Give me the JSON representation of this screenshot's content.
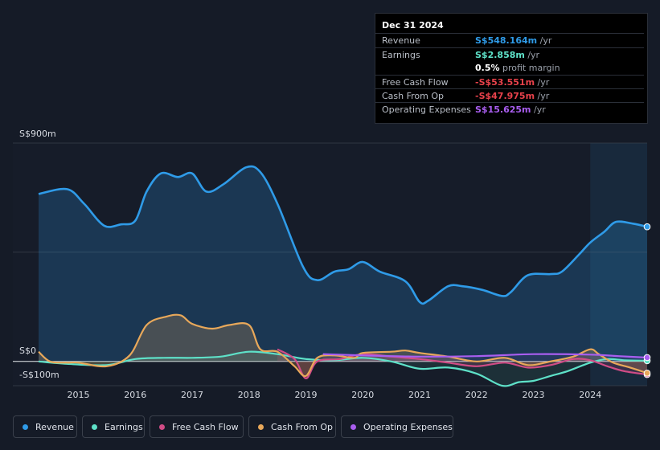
{
  "tooltip": {
    "date": "Dec 31 2024",
    "rows": [
      {
        "label": "Revenue",
        "value": "S$548.164m",
        "unit": " /yr",
        "color": "#2f9be8"
      },
      {
        "label": "Earnings",
        "value": "S$2.858m",
        "unit": " /yr",
        "color": "#5ee1c8"
      },
      {
        "label": "",
        "value": "0.5%",
        "unit": " profit margin",
        "color": "#ffffff"
      },
      {
        "label": "Free Cash Flow",
        "value": "-S$53.551m",
        "unit": " /yr",
        "color": "#e8424b"
      },
      {
        "label": "Cash From Op",
        "value": "-S$47.975m",
        "unit": " /yr",
        "color": "#e8424b"
      },
      {
        "label": "Operating Expenses",
        "value": "S$15.625m",
        "unit": " /yr",
        "color": "#a95ef0"
      }
    ]
  },
  "legend": [
    {
      "label": "Revenue",
      "color": "#2f9be8"
    },
    {
      "label": "Earnings",
      "color": "#5ee1c8"
    },
    {
      "label": "Free Cash Flow",
      "color": "#d04c86"
    },
    {
      "label": "Cash From Op",
      "color": "#e8a85a"
    },
    {
      "label": "Operating Expenses",
      "color": "#a95ef0"
    }
  ],
  "chart_data": {
    "type": "area",
    "title": "",
    "xlabel": "",
    "ylabel": "",
    "ytick_labels": [
      "S$900m",
      "S$0",
      "-S$100m"
    ],
    "xtick_labels": [
      "2015",
      "2016",
      "2017",
      "2018",
      "2019",
      "2020",
      "2021",
      "2022",
      "2023",
      "2024"
    ],
    "xlim": [
      2014.3,
      2025.0
    ],
    "ylim": [
      -100,
      900
    ],
    "highlight_from": 2024.0,
    "series": [
      {
        "name": "Revenue",
        "color": "#2f9be8",
        "points": [
          [
            2014.3,
            690
          ],
          [
            2014.8,
            710
          ],
          [
            2015.1,
            650
          ],
          [
            2015.45,
            560
          ],
          [
            2015.75,
            565
          ],
          [
            2016.0,
            580
          ],
          [
            2016.2,
            700
          ],
          [
            2016.45,
            775
          ],
          [
            2016.75,
            760
          ],
          [
            2017.0,
            775
          ],
          [
            2017.25,
            700
          ],
          [
            2017.55,
            730
          ],
          [
            2017.95,
            800
          ],
          [
            2018.2,
            780
          ],
          [
            2018.5,
            650
          ],
          [
            2018.95,
            390
          ],
          [
            2019.2,
            335
          ],
          [
            2019.5,
            370
          ],
          [
            2019.75,
            380
          ],
          [
            2020.0,
            410
          ],
          [
            2020.3,
            370
          ],
          [
            2020.75,
            330
          ],
          [
            2021.0,
            245
          ],
          [
            2021.15,
            250
          ],
          [
            2021.5,
            310
          ],
          [
            2021.75,
            310
          ],
          [
            2022.1,
            295
          ],
          [
            2022.45,
            270
          ],
          [
            2022.6,
            285
          ],
          [
            2022.9,
            355
          ],
          [
            2023.3,
            360
          ],
          [
            2023.5,
            370
          ],
          [
            2023.8,
            440
          ],
          [
            2024.0,
            490
          ],
          [
            2024.25,
            535
          ],
          [
            2024.45,
            575
          ],
          [
            2024.75,
            568
          ],
          [
            2025.0,
            555
          ]
        ]
      },
      {
        "name": "Earnings",
        "color": "#5ee1c8",
        "points": [
          [
            2014.3,
            0
          ],
          [
            2014.8,
            -10
          ],
          [
            2015.5,
            -15
          ],
          [
            2016.0,
            10
          ],
          [
            2016.5,
            15
          ],
          [
            2017.0,
            15
          ],
          [
            2017.5,
            20
          ],
          [
            2018.0,
            40
          ],
          [
            2018.5,
            30
          ],
          [
            2019.0,
            10
          ],
          [
            2019.5,
            5
          ],
          [
            2020.0,
            15
          ],
          [
            2020.5,
            0
          ],
          [
            2021.0,
            -30
          ],
          [
            2021.5,
            -25
          ],
          [
            2022.0,
            -50
          ],
          [
            2022.45,
            -100
          ],
          [
            2022.75,
            -85
          ],
          [
            2023.0,
            -80
          ],
          [
            2023.3,
            -60
          ],
          [
            2023.6,
            -40
          ],
          [
            2024.0,
            -5
          ],
          [
            2024.3,
            10
          ],
          [
            2024.6,
            5
          ],
          [
            2025.0,
            3
          ]
        ]
      },
      {
        "name": "Free Cash Flow",
        "color": "#d04c86",
        "points": [
          [
            2018.5,
            50
          ],
          [
            2018.8,
            10
          ],
          [
            2019.0,
            -70
          ],
          [
            2019.2,
            0
          ],
          [
            2019.6,
            10
          ],
          [
            2020.0,
            30
          ],
          [
            2020.5,
            20
          ],
          [
            2021.0,
            10
          ],
          [
            2021.5,
            -5
          ],
          [
            2022.0,
            -20
          ],
          [
            2022.5,
            -5
          ],
          [
            2022.9,
            -25
          ],
          [
            2023.3,
            -15
          ],
          [
            2023.7,
            10
          ],
          [
            2024.0,
            5
          ],
          [
            2024.3,
            -20
          ],
          [
            2024.6,
            -40
          ],
          [
            2025.0,
            -54
          ]
        ]
      },
      {
        "name": "Cash From Op",
        "color": "#e8a85a",
        "points": [
          [
            2014.3,
            40
          ],
          [
            2014.5,
            0
          ],
          [
            2014.8,
            -5
          ],
          [
            2015.0,
            -5
          ],
          [
            2015.5,
            -20
          ],
          [
            2015.9,
            25
          ],
          [
            2016.2,
            150
          ],
          [
            2016.55,
            185
          ],
          [
            2016.8,
            190
          ],
          [
            2017.0,
            155
          ],
          [
            2017.35,
            135
          ],
          [
            2017.65,
            150
          ],
          [
            2018.0,
            150
          ],
          [
            2018.2,
            50
          ],
          [
            2018.5,
            40
          ],
          [
            2018.8,
            -20
          ],
          [
            2019.0,
            -60
          ],
          [
            2019.2,
            15
          ],
          [
            2019.5,
            25
          ],
          [
            2019.85,
            15
          ],
          [
            2020.0,
            35
          ],
          [
            2020.5,
            40
          ],
          [
            2020.75,
            45
          ],
          [
            2021.0,
            35
          ],
          [
            2021.5,
            20
          ],
          [
            2022.0,
            0
          ],
          [
            2022.5,
            15
          ],
          [
            2022.9,
            -15
          ],
          [
            2023.3,
            0
          ],
          [
            2023.7,
            20
          ],
          [
            2024.0,
            50
          ],
          [
            2024.15,
            30
          ],
          [
            2024.4,
            -5
          ],
          [
            2024.7,
            -25
          ],
          [
            2025.0,
            -48
          ]
        ]
      },
      {
        "name": "Operating Expenses",
        "color": "#a95ef0",
        "points": [
          [
            2019.3,
            30
          ],
          [
            2020.0,
            25
          ],
          [
            2021.0,
            20
          ],
          [
            2022.0,
            22
          ],
          [
            2023.0,
            30
          ],
          [
            2024.0,
            28
          ],
          [
            2024.5,
            22
          ],
          [
            2025.0,
            16
          ]
        ]
      }
    ]
  }
}
